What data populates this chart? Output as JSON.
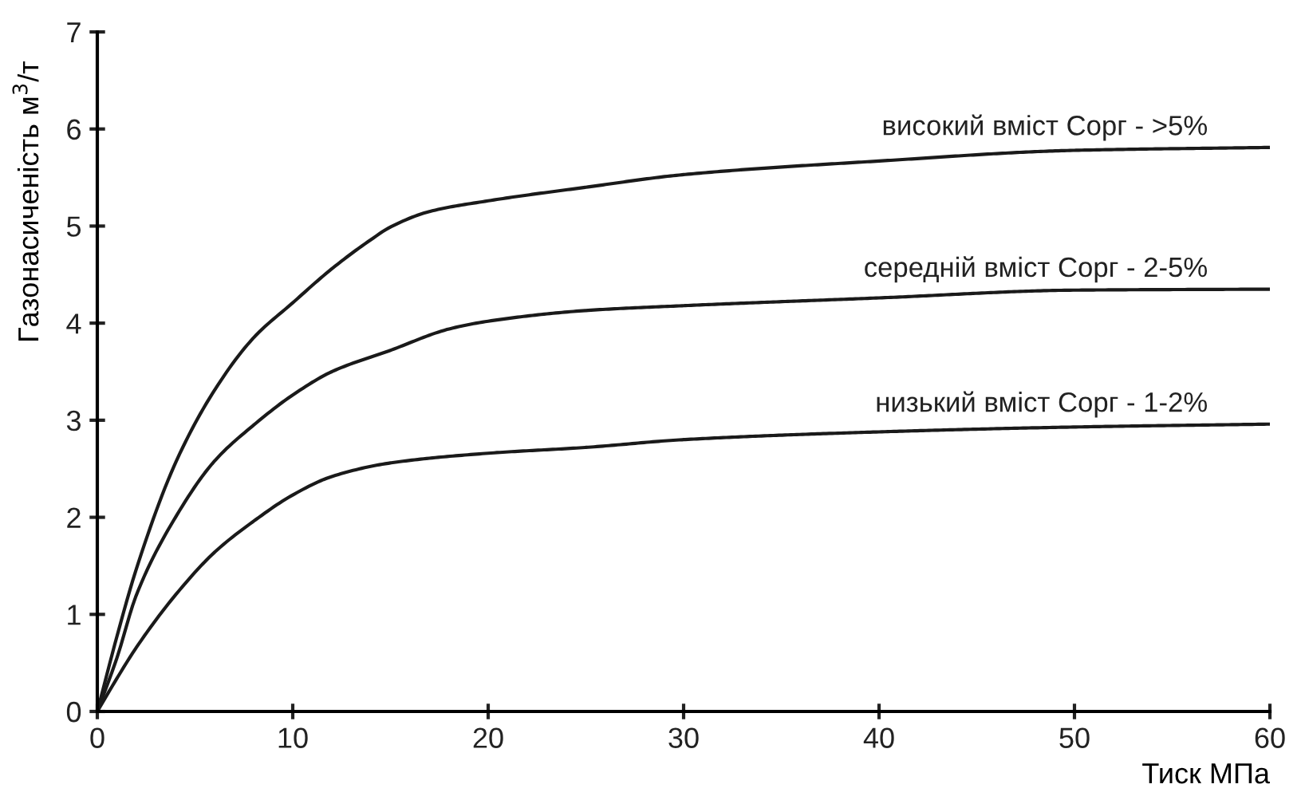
{
  "chart_data": {
    "type": "line",
    "xlabel": "Тиск МПа",
    "ylabel": "Газонасиченість м$^{3}$/т",
    "xlim": [
      0,
      60
    ],
    "ylim": [
      0,
      7
    ],
    "xticks": [
      0,
      10,
      20,
      30,
      40,
      50,
      60
    ],
    "yticks": [
      0,
      1,
      2,
      3,
      4,
      5,
      6,
      7
    ],
    "grid": false,
    "legend": false,
    "marker": "none",
    "line_style": "solid",
    "series": [
      {
        "name": "високий вміст Сорг - >5%",
        "color": "#1a1a1a",
        "x": [
          0,
          1,
          2,
          4,
          6,
          8,
          10,
          12,
          14,
          15,
          17,
          20,
          25,
          30,
          40,
          50,
          60
        ],
        "values": [
          0,
          0.77,
          1.47,
          2.56,
          3.31,
          3.85,
          4.21,
          4.56,
          4.86,
          4.99,
          5.15,
          5.26,
          5.4,
          5.53,
          5.67,
          5.78,
          5.81
        ]
      },
      {
        "name": "середній вміст Сорг - 2-5%",
        "color": "#1a1a1a",
        "x": [
          0,
          1,
          2,
          4,
          6,
          8,
          10,
          12,
          15,
          18,
          20,
          25,
          30,
          40,
          50,
          60
        ],
        "values": [
          0,
          0.55,
          1.2,
          2.0,
          2.58,
          2.95,
          3.26,
          3.5,
          3.72,
          3.94,
          4.02,
          4.13,
          4.18,
          4.26,
          4.34,
          4.35
        ]
      },
      {
        "name": "низький вміст Сорг - 1-2%",
        "color": "#1a1a1a",
        "x": [
          0,
          1,
          2,
          4,
          6,
          8,
          10,
          12,
          15,
          20,
          25,
          30,
          40,
          50,
          60
        ],
        "values": [
          0,
          0.34,
          0.66,
          1.2,
          1.64,
          1.96,
          2.23,
          2.42,
          2.56,
          2.66,
          2.72,
          2.8,
          2.88,
          2.93,
          2.96
        ]
      }
    ]
  }
}
